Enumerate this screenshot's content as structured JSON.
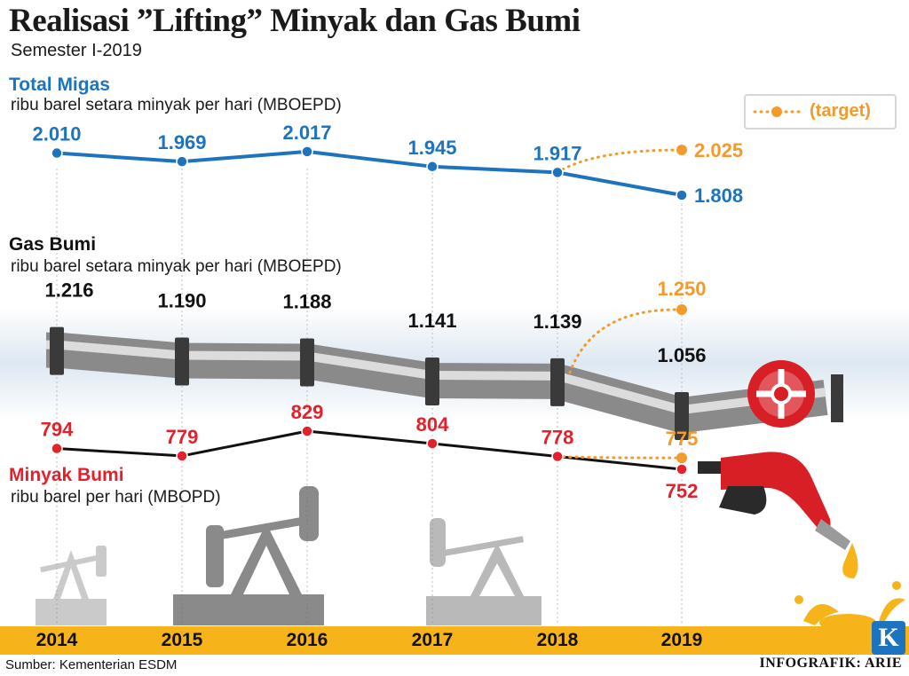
{
  "header": {
    "title": "Realisasi ”Lifting” Minyak dan Gas Bumi",
    "subtitle": "Semester I-2019"
  },
  "legend": {
    "label": "(target)"
  },
  "sections": {
    "migas": {
      "title": "Total Migas",
      "unit": "ribu barel setara minyak per hari (MBOEPD)"
    },
    "gas": {
      "title": "Gas Bumi",
      "unit": "ribu barel setara minyak per hari (MBOEPD)"
    },
    "minyak": {
      "title": "Minyak Bumi",
      "unit": "ribu barel per hari (MBOPD)"
    }
  },
  "colors": {
    "migas": "#1e73be",
    "gas": "#111111",
    "minyak": "#e4202a",
    "target": "#f39a2b",
    "yearbar": "#f6b41a"
  },
  "chart_data": [
    {
      "type": "line",
      "name": "Total Migas",
      "categories": [
        "2014",
        "2015",
        "2016",
        "2017",
        "2018",
        "2019"
      ],
      "values": [
        2010,
        1969,
        2017,
        1945,
        1917,
        1808
      ],
      "value_labels": [
        "2.010",
        "1.969",
        "2.017",
        "1.945",
        "1.917",
        "1.808"
      ],
      "target": {
        "x": "2019",
        "value": 2025,
        "label": "2.025"
      },
      "ylabel": "ribu barel setara minyak per hari (MBOEPD)"
    },
    {
      "type": "line",
      "name": "Gas Bumi",
      "categories": [
        "2014",
        "2015",
        "2016",
        "2017",
        "2018",
        "2019"
      ],
      "values": [
        1216,
        1190,
        1188,
        1141,
        1139,
        1056
      ],
      "value_labels": [
        "1.216",
        "1.190",
        "1.188",
        "1.141",
        "1.139",
        "1.056"
      ],
      "target": {
        "x": "2019",
        "value": 1250,
        "label": "1.250"
      },
      "ylabel": "ribu barel setara minyak per hari (MBOEPD)"
    },
    {
      "type": "line",
      "name": "Minyak Bumi",
      "categories": [
        "2014",
        "2015",
        "2016",
        "2017",
        "2018",
        "2019"
      ],
      "values": [
        794,
        779,
        829,
        804,
        778,
        752
      ],
      "value_labels": [
        "794",
        "779",
        "829",
        "804",
        "778",
        "752"
      ],
      "target": {
        "x": "2019",
        "value": 775,
        "label": "775"
      },
      "ylabel": "ribu barel per hari (MBOPD)"
    }
  ],
  "footer": {
    "source": "Sumber: Kementerian ESDM",
    "credit": "INFOGRAFIK: ARIE",
    "logo": "K"
  }
}
